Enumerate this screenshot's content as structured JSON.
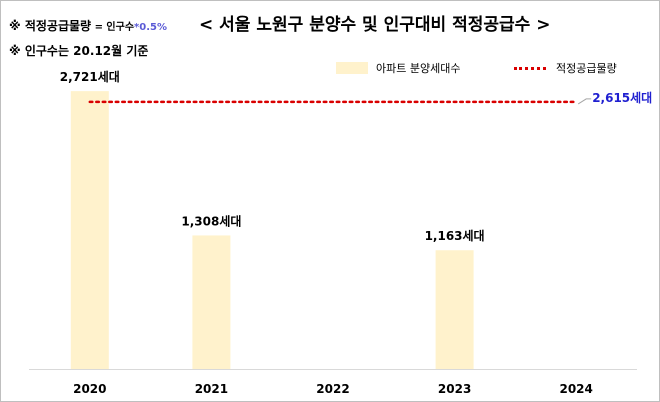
{
  "header": {
    "note1_prefix": "※ 적정공급물량",
    "note1_eq": " = 인구수",
    "note1_factor": "*0.5%",
    "note2": "※ 인구수는 20.12월 기준",
    "title": "< 서울 노원구 분양수 및 인구대비 적정공급수 >"
  },
  "legend": {
    "bar_label": "아파트 분양세대수",
    "line_label": "적정공급물량"
  },
  "colors": {
    "bar": "#fff2cc",
    "line": "#d90000",
    "line_label": "#1f1fd0"
  },
  "chart_data": {
    "type": "bar",
    "categories": [
      "2020",
      "2021",
      "2022",
      "2023",
      "2024"
    ],
    "series": [
      {
        "name": "아파트 분양세대수",
        "type": "bar",
        "values": [
          2721,
          1308,
          null,
          1163,
          null
        ]
      },
      {
        "name": "적정공급물량",
        "type": "line",
        "value": 2615
      }
    ],
    "bar_labels": [
      "2,721세대",
      "1,308세대",
      "",
      "1,163세대",
      ""
    ],
    "line_label": "2,615세대",
    "ylim": [
      0,
      2820
    ],
    "grid": false,
    "legend_position": "top-right"
  }
}
